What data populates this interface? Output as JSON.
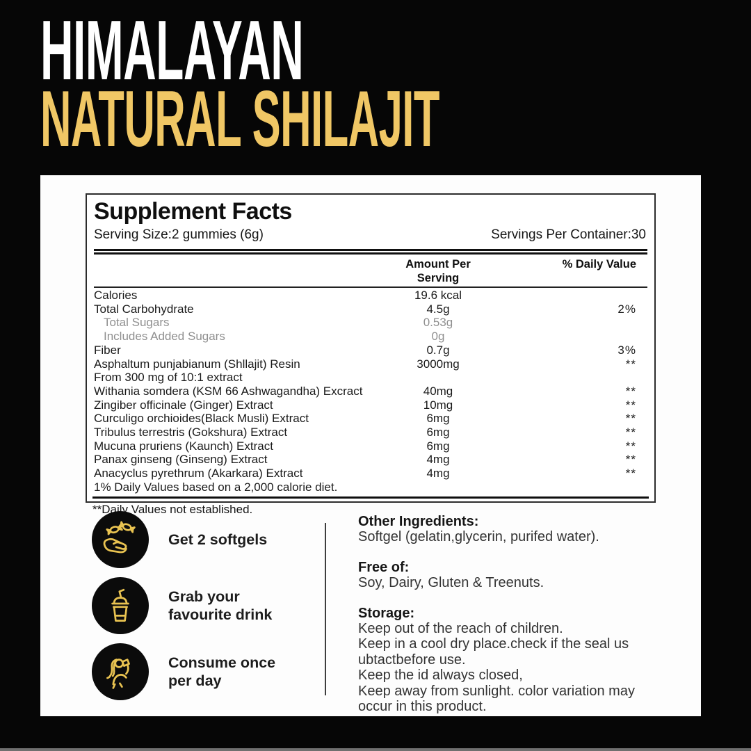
{
  "colors": {
    "background": "#060606",
    "panel": "#fdfdfd",
    "accent_gold": "#F0C765",
    "icon_stroke": "#E9C351",
    "ink": "#141414"
  },
  "header": {
    "line1": "HIMALAYAN",
    "line2": "NATURAL SHILAJIT"
  },
  "facts": {
    "title": "Supplement Facts",
    "serving_size": "Serving Size:2 gummies (6g)",
    "servings_per_container": "Servings Per Container:30",
    "col_amount": "Amount Per Serving",
    "col_dv": "% Daily Value",
    "rows": [
      {
        "name": "Calories",
        "amount": "19.6 kcal",
        "dv": "",
        "indent": false,
        "muted": false
      },
      {
        "name": "Total Carbohydrate",
        "amount": "4.5g",
        "dv": "2%",
        "indent": false,
        "muted": false
      },
      {
        "name": "Total Sugars",
        "amount": "0.53g",
        "dv": "",
        "indent": true,
        "muted": true
      },
      {
        "name": "Includes Added Sugars",
        "amount": "0g",
        "dv": "",
        "indent": true,
        "muted": true
      },
      {
        "name": "Fiber",
        "amount": "0.7g",
        "dv": "3%",
        "indent": false,
        "muted": false
      },
      {
        "name": "Asphaltum punjabianum (Shllajit) Resin",
        "amount": "3000mg",
        "dv": "**",
        "indent": false,
        "muted": false
      },
      {
        "name": "From 300 mg of 10:1 extract",
        "amount": "",
        "dv": "",
        "indent": false,
        "muted": false
      },
      {
        "name": "Withania somdera (KSM 66 Ashwagandha) Excract",
        "amount": "40mg",
        "dv": "**",
        "indent": false,
        "muted": false
      },
      {
        "name": "Zingiber officinale (Ginger) Extract",
        "amount": "10mg",
        "dv": "**",
        "indent": false,
        "muted": false
      },
      {
        "name": "Curculigo orchioides(Black Musli) Extract",
        "amount": "6mg",
        "dv": "**",
        "indent": false,
        "muted": false
      },
      {
        "name": "Tribulus terrestris (Gokshura) Extract",
        "amount": "6mg",
        "dv": "**",
        "indent": false,
        "muted": false
      },
      {
        "name": "Mucuna pruriens (Kaunch) Extract",
        "amount": "6mg",
        "dv": "**",
        "indent": false,
        "muted": false
      },
      {
        "name": "Panax ginseng (Ginseng) Extract",
        "amount": "4mg",
        "dv": "**",
        "indent": false,
        "muted": false
      },
      {
        "name": "Anacyclus pyrethrum (Akarkara) Extract",
        "amount": "4mg",
        "dv": "**",
        "indent": false,
        "muted": false
      },
      {
        "name": "1% Daily Values based on a 2,000 calorie diet.",
        "amount": "",
        "dv": "",
        "indent": false,
        "muted": false
      }
    ],
    "footnote": "**Daily Values not established."
  },
  "instructions": {
    "items": [
      {
        "icon": "softgels-hand-icon",
        "lines": [
          "Get 2 softgels"
        ]
      },
      {
        "icon": "drink-cup-icon",
        "lines": [
          "Grab your",
          "favourite drink"
        ]
      },
      {
        "icon": "person-drinking-icon",
        "lines": [
          "Consume once",
          "per day"
        ]
      }
    ]
  },
  "info": {
    "blocks": [
      {
        "heading": "Other Ingredients:",
        "lines": [
          "Softgel (gelatin,glycerin, purifed water)."
        ]
      },
      {
        "heading": "Free of:",
        "lines": [
          "Soy, Dairy, Gluten & Treenuts."
        ]
      },
      {
        "heading": "Storage:",
        "lines": [
          "Keep out of the reach of children.",
          "Keep in a cool dry place.check if the seal us",
          "ubtactbefore use.",
          "Keep the id always closed,",
          "Keep away from sunlight. color variation may",
          "occur in this product."
        ]
      }
    ]
  }
}
